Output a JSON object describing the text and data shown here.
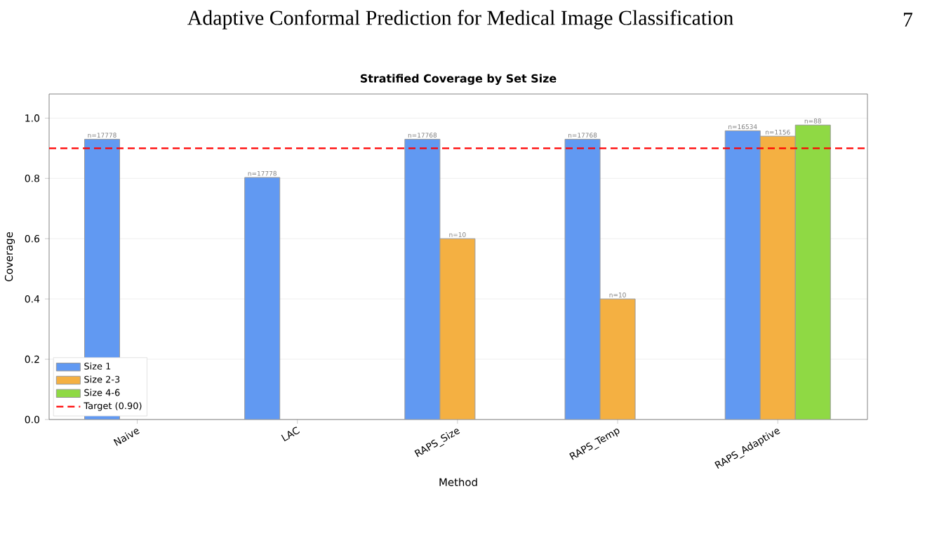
{
  "chart_data": {
    "type": "bar",
    "title": "Stratified Coverage by Set Size",
    "annotations": [
      "Adaptive Conformal Prediction for Medical Image Classification",
      "7",
      "n=17778",
      "n=17778",
      "n=17768",
      "n=10",
      "n=17768",
      "n=10",
      "n=16534",
      "n=1156",
      "n=88"
    ],
    "xlabel": "Method",
    "ylabel": "Coverage",
    "categories": [
      "Naive",
      "LAC",
      "RAPS_Size",
      "RAPS_Temp",
      "RAPS_Adaptive"
    ],
    "series": [
      {
        "name": "Size 1",
        "color": "#6199f2",
        "values": [
          0.93,
          0.803,
          0.93,
          0.93,
          0.958
        ]
      },
      {
        "name": "Size 2-3",
        "color": "#f4b042",
        "values": [
          null,
          null,
          0.6,
          0.4,
          0.94
        ]
      },
      {
        "name": "Size 4-6",
        "color": "#8fd944",
        "values": [
          null,
          null,
          null,
          null,
          0.977
        ]
      }
    ],
    "ylim": [
      0,
      1.08
    ],
    "yticks": [
      {
        "value": 0,
        "label": "0.0"
      },
      {
        "value": 0.2,
        "label": "0.2"
      },
      {
        "value": 0.4,
        "label": "0.4"
      },
      {
        "value": 0.6,
        "label": "0.6"
      },
      {
        "value": 0.8,
        "label": "0.8"
      },
      {
        "value": 1.0,
        "label": "1.0"
      }
    ],
    "ref_lines": [
      {
        "axis": "y",
        "value": 0.9,
        "label": "Target (0.90)",
        "color": "#ff0000",
        "line_style": "dashed"
      }
    ],
    "grid": "y",
    "legend": "bottom left"
  }
}
